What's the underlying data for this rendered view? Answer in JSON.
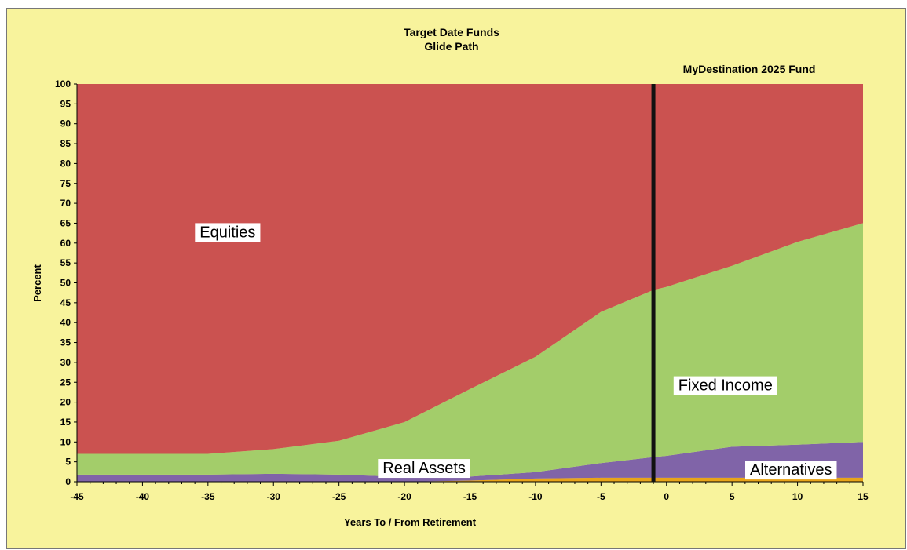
{
  "chart_data": {
    "type": "area",
    "stacked": true,
    "title": "Target Date Funds",
    "subtitle": "Glide Path",
    "xlabel": "Years To / From Retirement",
    "ylabel": "Percent",
    "xlim": [
      -45,
      15
    ],
    "ylim": [
      0,
      100
    ],
    "x_ticks": [
      -45,
      -40,
      -35,
      -30,
      -25,
      -20,
      -15,
      -10,
      -5,
      0,
      5,
      10,
      15
    ],
    "y_ticks": [
      0,
      5,
      10,
      15,
      20,
      25,
      30,
      35,
      40,
      45,
      50,
      55,
      60,
      65,
      70,
      75,
      80,
      85,
      90,
      95,
      100
    ],
    "grid": false,
    "legend": "none",
    "x": [
      -45,
      -40,
      -35,
      -30,
      -25,
      -20,
      -15,
      -10,
      -5,
      -1,
      0,
      5,
      10,
      15
    ],
    "series": [
      {
        "name": "Alternatives",
        "color": "#e8a419",
        "values": [
          0,
          0,
          0,
          0,
          0,
          0,
          0.3,
          0.8,
          1.0,
          1.0,
          1.0,
          1.0,
          1.0,
          1.0
        ]
      },
      {
        "name": "Real Assets",
        "color": "#8064a8",
        "values": [
          1.8,
          1.8,
          1.8,
          2.0,
          1.8,
          1.2,
          1.0,
          1.6,
          3.7,
          5.2,
          5.5,
          7.8,
          8.3,
          9.0
        ]
      },
      {
        "name": "Fixed Income",
        "color": "#a3cd6a",
        "values": [
          5.2,
          5.2,
          5.2,
          6.2,
          8.5,
          13.8,
          22.0,
          29.0,
          38.0,
          42.0,
          42.5,
          45.5,
          51.0,
          55.0
        ]
      },
      {
        "name": "Equities",
        "color": "#cb5250",
        "values": [
          93.0,
          93.0,
          93.0,
          91.8,
          89.7,
          85.0,
          76.7,
          68.6,
          57.3,
          51.8,
          51.0,
          45.7,
          39.7,
          35.0
        ]
      }
    ],
    "annotations": [
      {
        "text": "MyDestination 2025 Fund",
        "type": "vertical-line",
        "x": -1
      }
    ],
    "area_labels": [
      {
        "text": "Equities",
        "x": -33.5,
        "y": 62.5
      },
      {
        "text": "Fixed Income",
        "x": 4.5,
        "y": 24
      },
      {
        "text": "Real Assets",
        "x": -18.5,
        "y": 3.2
      },
      {
        "text": "Alternatives",
        "x": 9.5,
        "y": 2.8
      }
    ]
  }
}
